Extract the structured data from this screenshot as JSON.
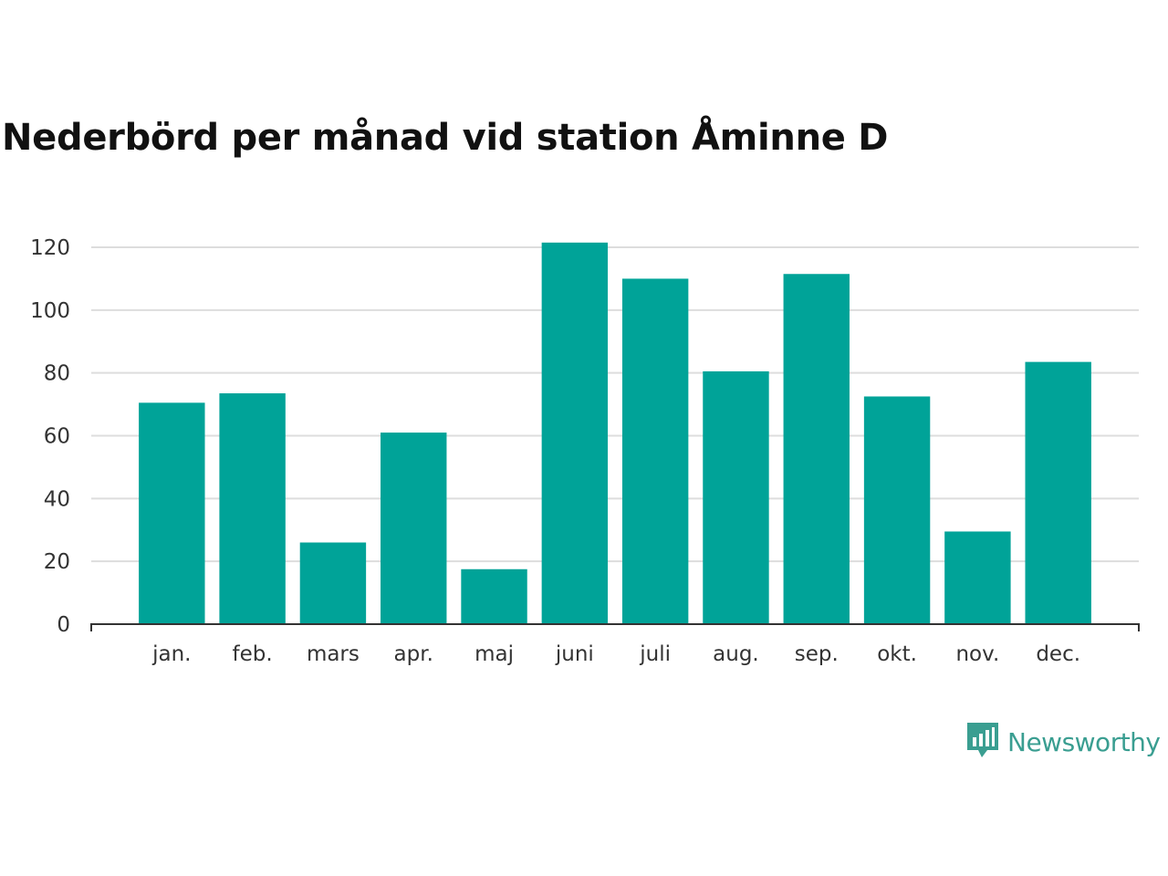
{
  "title": "Nederbörd per månad vid station Åminne D",
  "brand": {
    "name": "Newsworthy",
    "logo_icon": "newsworthy-logo-icon"
  },
  "colors": {
    "bar": "#00a398",
    "grid": "#dddddd",
    "axis": "#333333",
    "brand": "#3a9e91"
  },
  "chart_data": {
    "type": "bar",
    "title": "Nederbörd per månad vid station Åminne D",
    "xlabel": "",
    "ylabel": "",
    "categories": [
      "jan.",
      "feb.",
      "mars",
      "apr.",
      "maj",
      "juni",
      "juli",
      "aug.",
      "sep.",
      "okt.",
      "nov.",
      "dec."
    ],
    "values": [
      70.5,
      73.5,
      26,
      61,
      17.5,
      121.5,
      110,
      80.5,
      111.5,
      72.5,
      29.5,
      83.5
    ],
    "ylim": [
      0,
      120
    ],
    "yticks": [
      "0",
      "20",
      "40",
      "60",
      "80",
      "100",
      "120"
    ],
    "grid": true,
    "legend": "none"
  }
}
